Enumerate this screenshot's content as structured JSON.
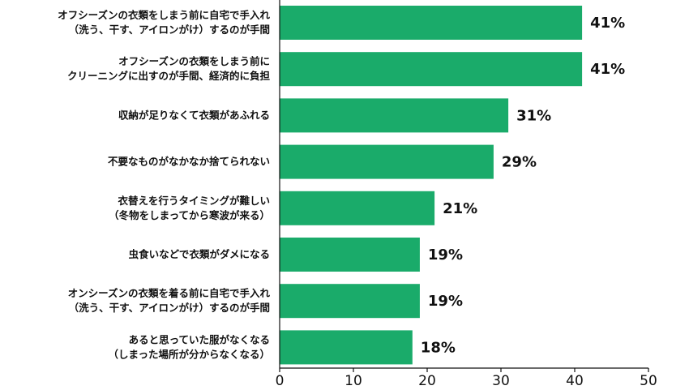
{
  "chart_data": {
    "type": "bar",
    "orientation": "horizontal",
    "categories": [
      [
        "オフシーズンの衣類をしまう前に自宅で手入れ",
        "（洗う、干す、アイロンがけ）するのが手間"
      ],
      [
        "オフシーズンの衣類をしまう前に",
        "クリーニングに出すのが手間、経済的に負担"
      ],
      [
        "収納が足りなくて衣類があふれる"
      ],
      [
        "不要なものがなかなか捨てられない"
      ],
      [
        "衣替えを行うタイミングが難しい",
        "（冬物をしまってから寒波が来る）"
      ],
      [
        "虫食いなどで衣類がダメになる"
      ],
      [
        "オンシーズンの衣類を着る前に自宅で手入れ",
        "（洗う、干す、アイロンがけ）するのが手間"
      ],
      [
        "あると思っていた服がなくなる",
        "（しまった場所が分からなくなる）"
      ]
    ],
    "values": [
      41,
      41,
      31,
      29,
      21,
      19,
      19,
      18
    ],
    "value_labels": [
      "41%",
      "41%",
      "31%",
      "29%",
      "21%",
      "19%",
      "19%",
      "18%"
    ],
    "xlim": [
      0,
      50
    ],
    "xticks": [
      "0",
      "10",
      "20",
      "30",
      "40",
      "50"
    ],
    "grid": false,
    "bar_color": "#1aab6a"
  }
}
